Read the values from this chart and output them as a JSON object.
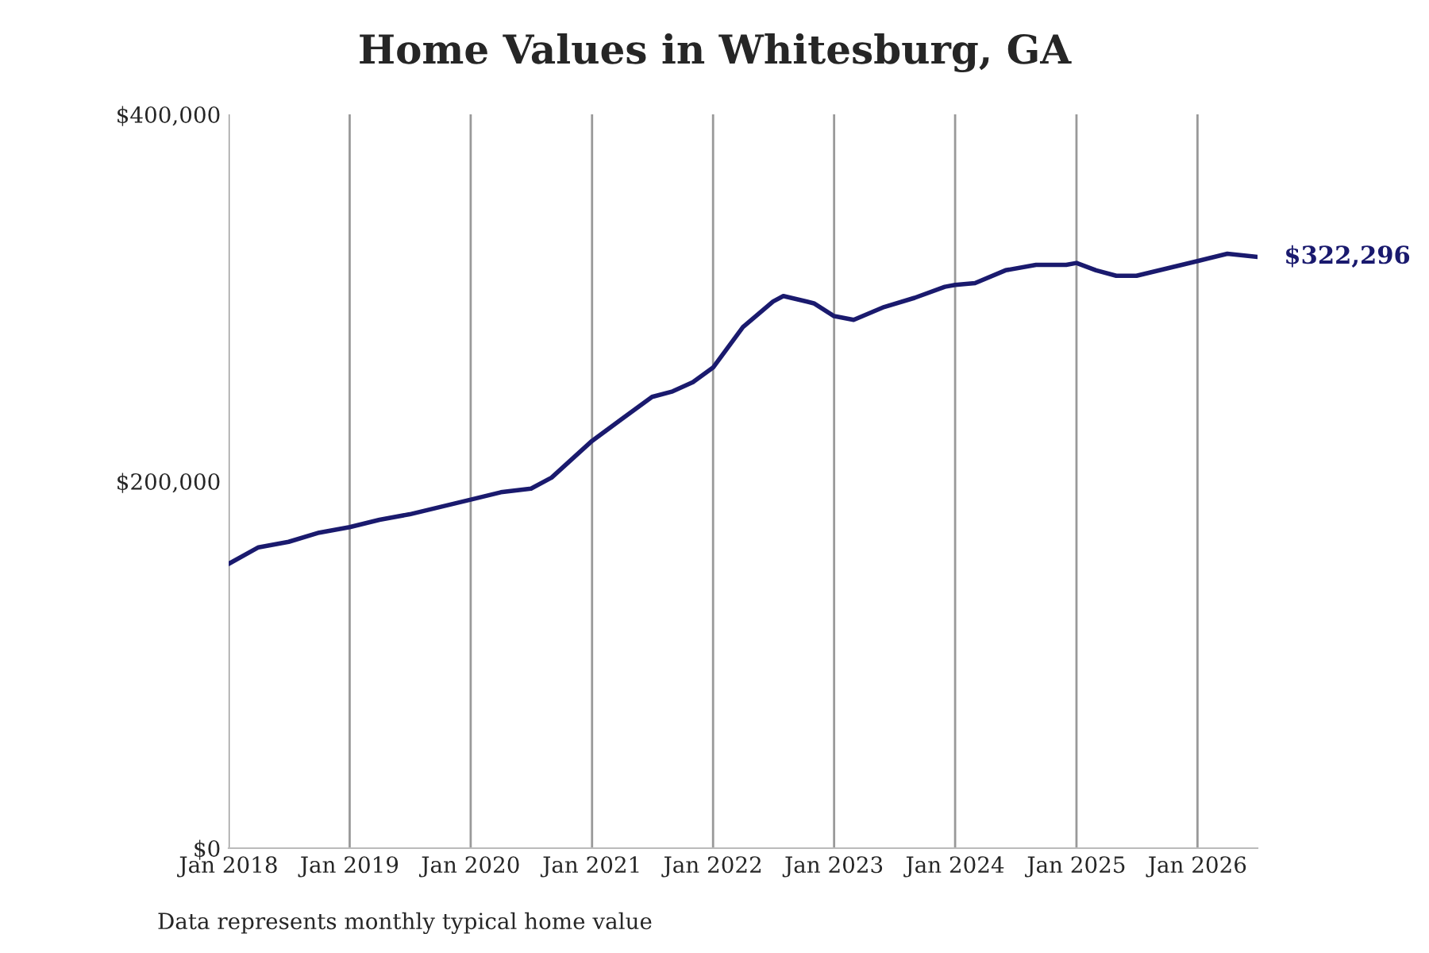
{
  "chart_data": {
    "type": "line",
    "title": "Home Values in Whitesburg, GA",
    "x": [
      "2018-01",
      "2018-04",
      "2018-07",
      "2018-10",
      "2019-01",
      "2019-04",
      "2019-07",
      "2019-10",
      "2020-01",
      "2020-04",
      "2020-07",
      "2020-09",
      "2021-01",
      "2021-04",
      "2021-07",
      "2021-09",
      "2021-11",
      "2022-01",
      "2022-04",
      "2022-07",
      "2022-08",
      "2022-11",
      "2023-01",
      "2023-03",
      "2023-06",
      "2023-09",
      "2023-12",
      "2024-01",
      "2024-03",
      "2024-06",
      "2024-09",
      "2024-12",
      "2025-01",
      "2025-03",
      "2025-05",
      "2025-07",
      "2025-10",
      "2026-01",
      "2026-04",
      "2026-07"
    ],
    "series": [
      {
        "color": "#1a1a6e",
        "values": [
          155000,
          164000,
          167000,
          172000,
          175000,
          179000,
          182000,
          186000,
          190000,
          194000,
          196000,
          202000,
          222000,
          234000,
          246000,
          249000,
          254000,
          262000,
          284000,
          298000,
          301000,
          297000,
          290000,
          288000,
          295000,
          300000,
          306000,
          307000,
          308000,
          315000,
          318000,
          318000,
          319000,
          315000,
          312000,
          312000,
          316000,
          320000,
          324000,
          322296
        ]
      }
    ],
    "xticks": [
      {
        "value": "2018-01",
        "label": "Jan 2018"
      },
      {
        "value": "2019-01",
        "label": "Jan 2019"
      },
      {
        "value": "2020-01",
        "label": "Jan 2020"
      },
      {
        "value": "2021-01",
        "label": "Jan 2021"
      },
      {
        "value": "2022-01",
        "label": "Jan 2022"
      },
      {
        "value": "2023-01",
        "label": "Jan 2023"
      },
      {
        "value": "2024-01",
        "label": "Jan 2024"
      },
      {
        "value": "2025-01",
        "label": "Jan 2025"
      },
      {
        "value": "2026-01",
        "label": "Jan 2026"
      }
    ],
    "xlim": [
      "2018-01",
      "2026-07"
    ],
    "ylim": [
      0,
      400000
    ],
    "yticks": [
      {
        "value": 0,
        "label": "$0"
      },
      {
        "value": 200000,
        "label": "$200,000"
      },
      {
        "value": 400000,
        "label": "$400,000"
      }
    ],
    "grid": "x",
    "legend": false,
    "marker": "none",
    "line_style": "solid",
    "annotations": [
      {
        "text": "$322,296",
        "x": "2026-07",
        "y": 322296
      },
      "Data represents monthly typical home value"
    ]
  }
}
